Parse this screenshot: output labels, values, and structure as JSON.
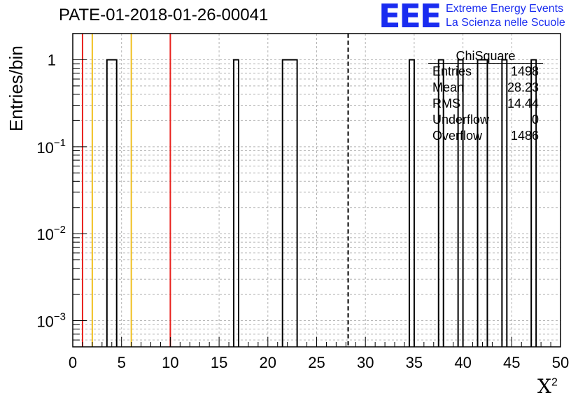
{
  "title": "PATE-01-2018-01-26-00041",
  "logo": {
    "mark": "EEE",
    "line1": "Extreme Energy Events",
    "line2": "La Scienza nelle Scuole"
  },
  "stats": {
    "title": "ChiSquare",
    "rows": [
      {
        "name": "Entries",
        "value": "1498"
      },
      {
        "name": "Mean",
        "value": "28.23"
      },
      {
        "name": "RMS",
        "value": "14.44"
      },
      {
        "name": "Underflow",
        "value": "0"
      },
      {
        "name": "Overflow",
        "value": "1486"
      }
    ]
  },
  "chart_data": {
    "type": "bar",
    "title": "PATE-01-2018-01-26-00041",
    "xlabel": "X",
    "xlabel_superscript": "2",
    "ylabel": "Entries/bin",
    "xlim": [
      0,
      50
    ],
    "ylim": [
      0.0005,
      2
    ],
    "yscale": "log",
    "grid": true,
    "xticks": [
      "0",
      "5",
      "10",
      "15",
      "20",
      "25",
      "30",
      "35",
      "40",
      "45",
      "50"
    ],
    "yticks": [
      {
        "value": 1,
        "base": "1",
        "exp": ""
      },
      {
        "value": 0.1,
        "base": "10",
        "exp": "−1"
      },
      {
        "value": 0.01,
        "base": "10",
        "exp": "−2"
      },
      {
        "value": 0.001,
        "base": "10",
        "exp": "−3"
      }
    ],
    "bins": [
      {
        "x0": 3.5,
        "x1": 4.5,
        "value": 1
      },
      {
        "x0": 16.5,
        "x1": 17.0,
        "value": 1
      },
      {
        "x0": 21.5,
        "x1": 23.0,
        "value": 1
      },
      {
        "x0": 34.5,
        "x1": 35.0,
        "value": 1
      },
      {
        "x0": 37.5,
        "x1": 38.0,
        "value": 1
      },
      {
        "x0": 39.5,
        "x1": 40.0,
        "value": 1
      },
      {
        "x0": 41.5,
        "x1": 42.5,
        "value": 1
      },
      {
        "x0": 44.0,
        "x1": 44.5,
        "value": 1
      },
      {
        "x0": 47.0,
        "x1": 47.5,
        "value": 1
      }
    ],
    "vlines": [
      {
        "x": 1,
        "color": "#e8201c",
        "style": "solid"
      },
      {
        "x": 2,
        "color": "#f0c020",
        "style": "solid"
      },
      {
        "x": 6,
        "color": "#f0c020",
        "style": "solid"
      },
      {
        "x": 10,
        "color": "#e8201c",
        "style": "solid"
      },
      {
        "x": 28.23,
        "color": "#000000",
        "style": "dashed"
      }
    ]
  }
}
